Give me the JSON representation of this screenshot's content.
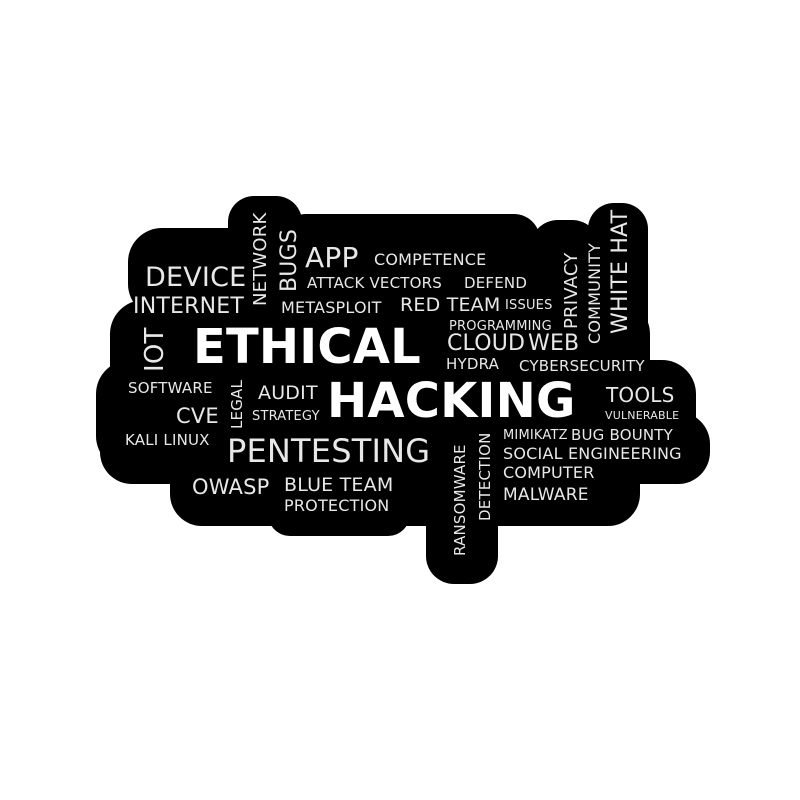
{
  "colors": {
    "sticker": "#000000",
    "text": "#e8e8e8",
    "background": "#ffffff"
  },
  "words": {
    "ethical": "ETHICAL",
    "hacking": "HACKING",
    "pentesting": "PENTESTING",
    "device": "DEVICE",
    "internet": "INTERNET",
    "iot": "IOT",
    "network": "NETWORK",
    "bugs": "BUGS",
    "app": "APP",
    "competence": "COMPETENCE",
    "attack_vectors": "ATTACK VECTORS",
    "defend": "DEFEND",
    "metasploit": "METASPLOIT",
    "red_team": "RED TEAM",
    "issues": "ISSUES",
    "privacy": "PRIVACY",
    "community": "COMMUNITY",
    "white_hat": "WHITE HAT",
    "programming": "PROGRAMMING",
    "cloud": "CLOUD",
    "web": "WEB",
    "hydra": "HYDRA",
    "cybersecurity": "CYBERSECURITY",
    "software": "SOFTWARE",
    "legal": "LEGAL",
    "audit": "AUDIT",
    "tools": "TOOLS",
    "cve": "CVE",
    "strategy": "STRATEGY",
    "vulnerable": "VULNERABLE",
    "kali_linux": "KALI LINUX",
    "ransomware": "RANSOMWARE",
    "detection": "DETECTION",
    "mimikatz": "MIMIKATZ",
    "bug_bounty": "BUG BOUNTY",
    "social_engineering": "SOCIAL ENGINEERING",
    "owasp": "OWASP",
    "blue_team": "BLUE TEAM",
    "computer": "COMPUTER",
    "protection": "PROTECTION",
    "malware": "MALWARE"
  }
}
